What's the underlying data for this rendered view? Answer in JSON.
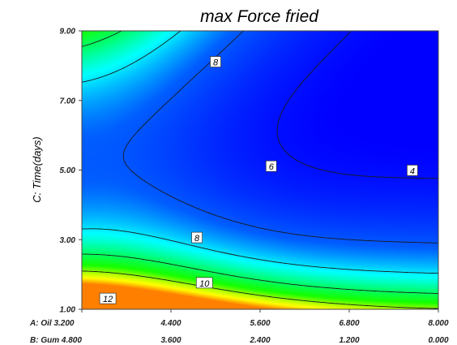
{
  "chart_data": {
    "type": "heatmap",
    "subtype": "response-surface-contour",
    "title": "max Force fried",
    "ylabel": "C: Time(days)",
    "y_ticks": [
      "1.00",
      "3.00",
      "5.00",
      "7.00",
      "9.00"
    ],
    "ylim": [
      1,
      9
    ],
    "x_axis_rows": [
      {
        "label": "A: Oil",
        "ticks": [
          "3.200",
          "4.400",
          "5.600",
          "6.800",
          "8.000"
        ]
      },
      {
        "label": "B: Gum",
        "ticks": [
          "4.800",
          "3.600",
          "2.400",
          "1.200",
          "0.000"
        ]
      }
    ],
    "x_row_labels": [
      "A: Oil 3.200",
      "B: Gum 4.800"
    ],
    "xlim_oil": [
      3.2,
      8.0
    ],
    "color_scale": [
      "#ff7f00",
      "#ffff00",
      "#00ff00",
      "#00ffff",
      "#0000ff"
    ],
    "contour_levels": [
      4,
      6,
      8,
      10,
      12
    ],
    "contour_labels": [
      {
        "text": "8",
        "oil": 5.0,
        "time": 8.1
      },
      {
        "text": "6",
        "oil": 5.75,
        "time": 5.1
      },
      {
        "text": "4",
        "oil": 7.65,
        "time": 4.98
      },
      {
        "text": "8",
        "oil": 4.75,
        "time": 3.05
      },
      {
        "text": "10",
        "oil": 4.85,
        "time": 1.75
      },
      {
        "text": "12",
        "oil": 3.55,
        "time": 1.3
      }
    ],
    "grid": false,
    "legend": "none"
  }
}
